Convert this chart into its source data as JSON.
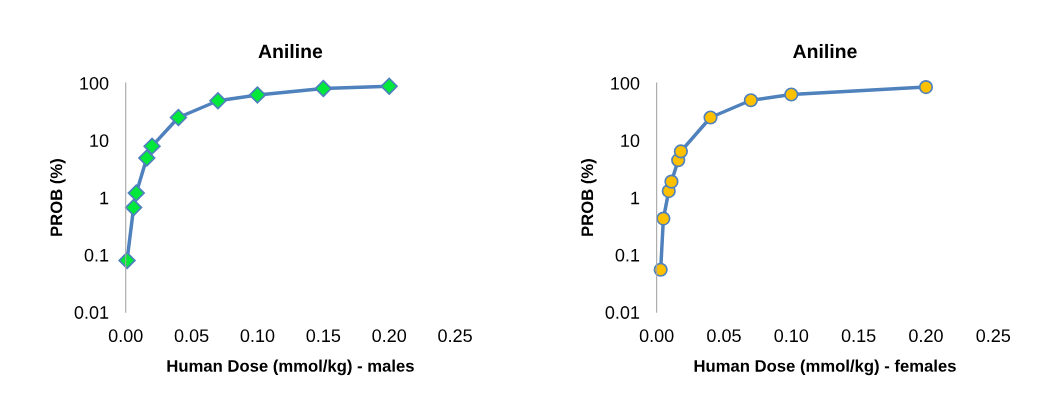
{
  "chart_data": [
    {
      "type": "line",
      "title": "Aniline",
      "xlabel": "Human Dose (mmol/kg) - males",
      "ylabel": "PROB (%)",
      "log": "y",
      "marker": "diamond",
      "line_style": "solid",
      "grid": false,
      "xlim": [
        0,
        0.25
      ],
      "xticks": [
        {
          "value": 0,
          "label": "0.00"
        },
        {
          "value": 0.05,
          "label": "0.05"
        },
        {
          "value": 0.1,
          "label": "0.10"
        },
        {
          "value": 0.15,
          "label": "0.15"
        },
        {
          "value": 0.2,
          "label": "0.20"
        },
        {
          "value": 0.25,
          "label": "0.25"
        }
      ],
      "ylim": [
        0.01,
        100
      ],
      "yticks": [
        0.01,
        0.1,
        1,
        10,
        100
      ],
      "series": [
        {
          "color": "#00e83a",
          "x": [
            0.001,
            0.006,
            0.008,
            0.016,
            0.02,
            0.04,
            0.07,
            0.1,
            0.15,
            0.2
          ],
          "values": [
            0.08,
            0.67,
            1.2,
            4.9,
            7.9,
            25,
            49,
            62,
            80,
            88
          ]
        }
      ]
    },
    {
      "type": "line",
      "title": "Aniline",
      "xlabel": "Human Dose (mmol/kg) - females",
      "ylabel": "PROB (%)",
      "log": "y",
      "marker": "circle",
      "line_style": "solid",
      "grid": false,
      "xlim": [
        0,
        0.25
      ],
      "xticks": [
        {
          "value": 0,
          "label": "0.00"
        },
        {
          "value": 0.05,
          "label": "0.05"
        },
        {
          "value": 0.1,
          "label": "0.10"
        },
        {
          "value": 0.15,
          "label": "0.15"
        },
        {
          "value": 0.2,
          "label": "0.20"
        },
        {
          "value": 0.25,
          "label": "0.25"
        }
      ],
      "ylim": [
        0.01,
        100
      ],
      "yticks": [
        0.01,
        0.1,
        1,
        10,
        100
      ],
      "series": [
        {
          "color": "#ffc000",
          "x": [
            0.003,
            0.005,
            0.009,
            0.011,
            0.016,
            0.018,
            0.04,
            0.07,
            0.1,
            0.2
          ],
          "values": [
            0.055,
            0.43,
            1.3,
            1.9,
            4.5,
            6.4,
            25,
            50,
            63,
            85
          ]
        }
      ]
    }
  ]
}
